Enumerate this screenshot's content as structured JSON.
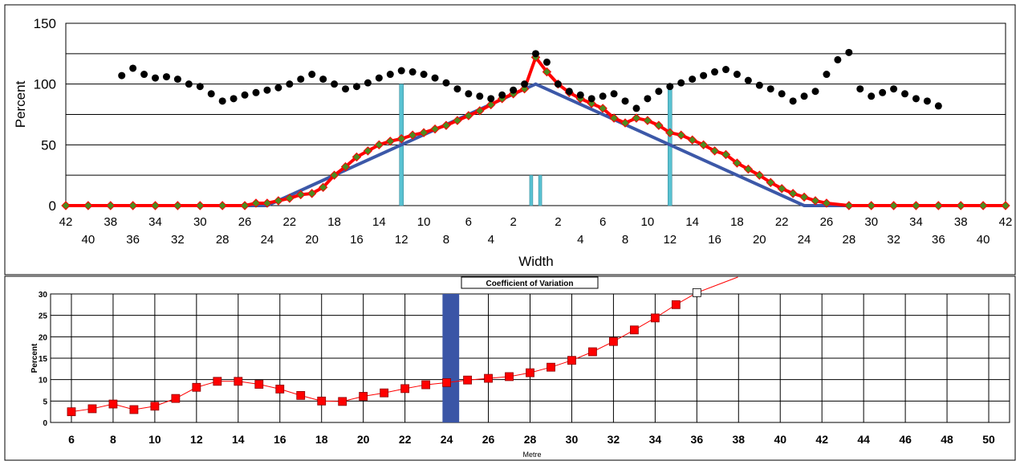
{
  "top_chart": {
    "ylabel": "Percent",
    "xlabel": "Width",
    "y_ticks": [
      "0",
      "50",
      "100",
      "150"
    ],
    "x_ticks_row1": [
      "42",
      "38",
      "34",
      "30",
      "26",
      "22",
      "18",
      "14",
      "10",
      "6",
      "2",
      "2",
      "6",
      "10",
      "14",
      "18",
      "22",
      "26",
      "30",
      "34",
      "38",
      "42"
    ],
    "x_ticks_row2": [
      "40",
      "36",
      "32",
      "28",
      "24",
      "20",
      "16",
      "12",
      "8",
      "4",
      "4",
      "8",
      "12",
      "16",
      "20",
      "24",
      "28",
      "32",
      "36",
      "40"
    ]
  },
  "bottom_chart": {
    "title": "Coefficient of Variation",
    "ylabel": "Percent",
    "xlabel": "Metre",
    "y_ticks": [
      "0",
      "5",
      "10",
      "15",
      "20",
      "25",
      "30"
    ],
    "x_ticks": [
      "6",
      "8",
      "10",
      "12",
      "14",
      "16",
      "18",
      "20",
      "22",
      "24",
      "26",
      "28",
      "30",
      "32",
      "34",
      "36",
      "38",
      "40",
      "42",
      "44",
      "46",
      "48",
      "50"
    ]
  },
  "colors": {
    "black_points": "#000000",
    "red_curve": "#ff0000",
    "diamond_fill": "#4e8a1e",
    "blue_line": "#3c58a8",
    "cyan_bars": "#59c2d2",
    "cv_marker": "#ff0000",
    "highlight_bar": "#3a55a6"
  },
  "chart_data": [
    {
      "type": "scatter",
      "ylim": [
        0,
        150
      ],
      "grid": true,
      "series": [
        {
          "style": "black-dots",
          "x": [
            37,
            36,
            35,
            34,
            33,
            32,
            31,
            30,
            29,
            28,
            27,
            26,
            25,
            24,
            23,
            22,
            21,
            20,
            19,
            18,
            17,
            16,
            15,
            14,
            13,
            12,
            11,
            10,
            9,
            8,
            7,
            6,
            5,
            4,
            3,
            2,
            1,
            0,
            -1,
            -2,
            -3,
            -4,
            -5,
            -6,
            -7,
            -8,
            -9,
            -10,
            -11,
            -12,
            -13,
            -14,
            -15,
            -16,
            -17,
            -18,
            -19,
            -20,
            -21,
            -22,
            -23,
            -24,
            -25,
            -26,
            -27,
            -28,
            -29,
            -30,
            -31,
            -32,
            -33,
            -34,
            -35,
            -36
          ],
          "values": [
            107,
            113,
            108,
            105,
            106,
            104,
            100,
            98,
            92,
            86,
            88,
            91,
            93,
            95,
            97,
            100,
            104,
            108,
            104,
            100,
            96,
            98,
            101,
            105,
            108,
            111,
            110,
            108,
            105,
            101,
            96,
            92,
            90,
            88,
            91,
            95,
            100,
            125,
            118,
            100,
            94,
            91,
            88,
            90,
            92,
            86,
            80,
            88,
            94,
            98,
            101,
            104,
            107,
            110,
            112,
            108,
            103,
            99,
            96,
            92,
            86,
            90,
            94,
            108,
            120,
            126,
            96,
            90,
            93,
            96,
            92,
            88,
            86,
            82
          ]
        },
        {
          "style": "red-curve-diamonds",
          "x": [
            42,
            40,
            38,
            36,
            34,
            32,
            30,
            28,
            26,
            25,
            24,
            23,
            22,
            21,
            20,
            19,
            18,
            17,
            16,
            15,
            14,
            13,
            12,
            11,
            10,
            9,
            8,
            7,
            6,
            5,
            4,
            3,
            2,
            1,
            0,
            -1,
            -2,
            -3,
            -4,
            -5,
            -6,
            -7,
            -8,
            -9,
            -10,
            -11,
            -12,
            -13,
            -14,
            -15,
            -16,
            -17,
            -18,
            -19,
            -20,
            -21,
            -22,
            -23,
            -24,
            -25,
            -26,
            -28,
            -30,
            -32,
            -34,
            -36,
            -38,
            -40,
            -42
          ],
          "values": [
            0,
            0,
            0,
            0,
            0,
            0,
            0,
            0,
            0,
            2,
            2,
            4,
            6,
            9,
            10,
            15,
            25,
            32,
            40,
            45,
            50,
            53,
            55,
            58,
            60,
            63,
            66,
            70,
            74,
            78,
            83,
            88,
            92,
            96,
            122,
            110,
            100,
            93,
            88,
            84,
            80,
            72,
            68,
            72,
            70,
            66,
            60,
            58,
            54,
            50,
            45,
            42,
            35,
            30,
            25,
            19,
            14,
            10,
            7,
            4,
            2,
            0,
            0,
            0,
            0,
            0,
            0,
            0,
            0
          ]
        },
        {
          "style": "blue-line",
          "x": [
            42,
            24,
            0,
            -24,
            -42
          ],
          "values": [
            0,
            0,
            100,
            0,
            0
          ]
        }
      ],
      "bars": [
        {
          "x": 12,
          "value": 100
        },
        {
          "x": -12,
          "value": 100
        },
        {
          "x": 0.4,
          "value": 25
        },
        {
          "x": -0.4,
          "value": 25
        }
      ]
    },
    {
      "type": "line",
      "title": "Coefficient of Variation",
      "ylabel": "Percent",
      "xlabel": "Metre",
      "xlim": [
        5,
        51
      ],
      "ylim": [
        0,
        30
      ],
      "grid": true,
      "highlight_band": [
        23.8,
        24.6
      ],
      "x": [
        6,
        7,
        8,
        9,
        10,
        11,
        12,
        13,
        14,
        15,
        16,
        17,
        18,
        19,
        20,
        21,
        22,
        23,
        24,
        25,
        26,
        27,
        28,
        29,
        30,
        31,
        32,
        33,
        34,
        35,
        36
      ],
      "values": [
        2.5,
        3.2,
        4.3,
        3.0,
        3.8,
        5.6,
        8.2,
        9.6,
        9.6,
        8.9,
        7.8,
        6.3,
        5.0,
        4.9,
        6.1,
        6.9,
        7.9,
        8.8,
        9.3,
        9.9,
        10.3,
        10.7,
        11.6,
        12.9,
        14.5,
        16.5,
        18.9,
        21.6,
        24.4,
        27.5,
        30.3
      ],
      "overflow_end": [
        38,
        34
      ]
    }
  ]
}
